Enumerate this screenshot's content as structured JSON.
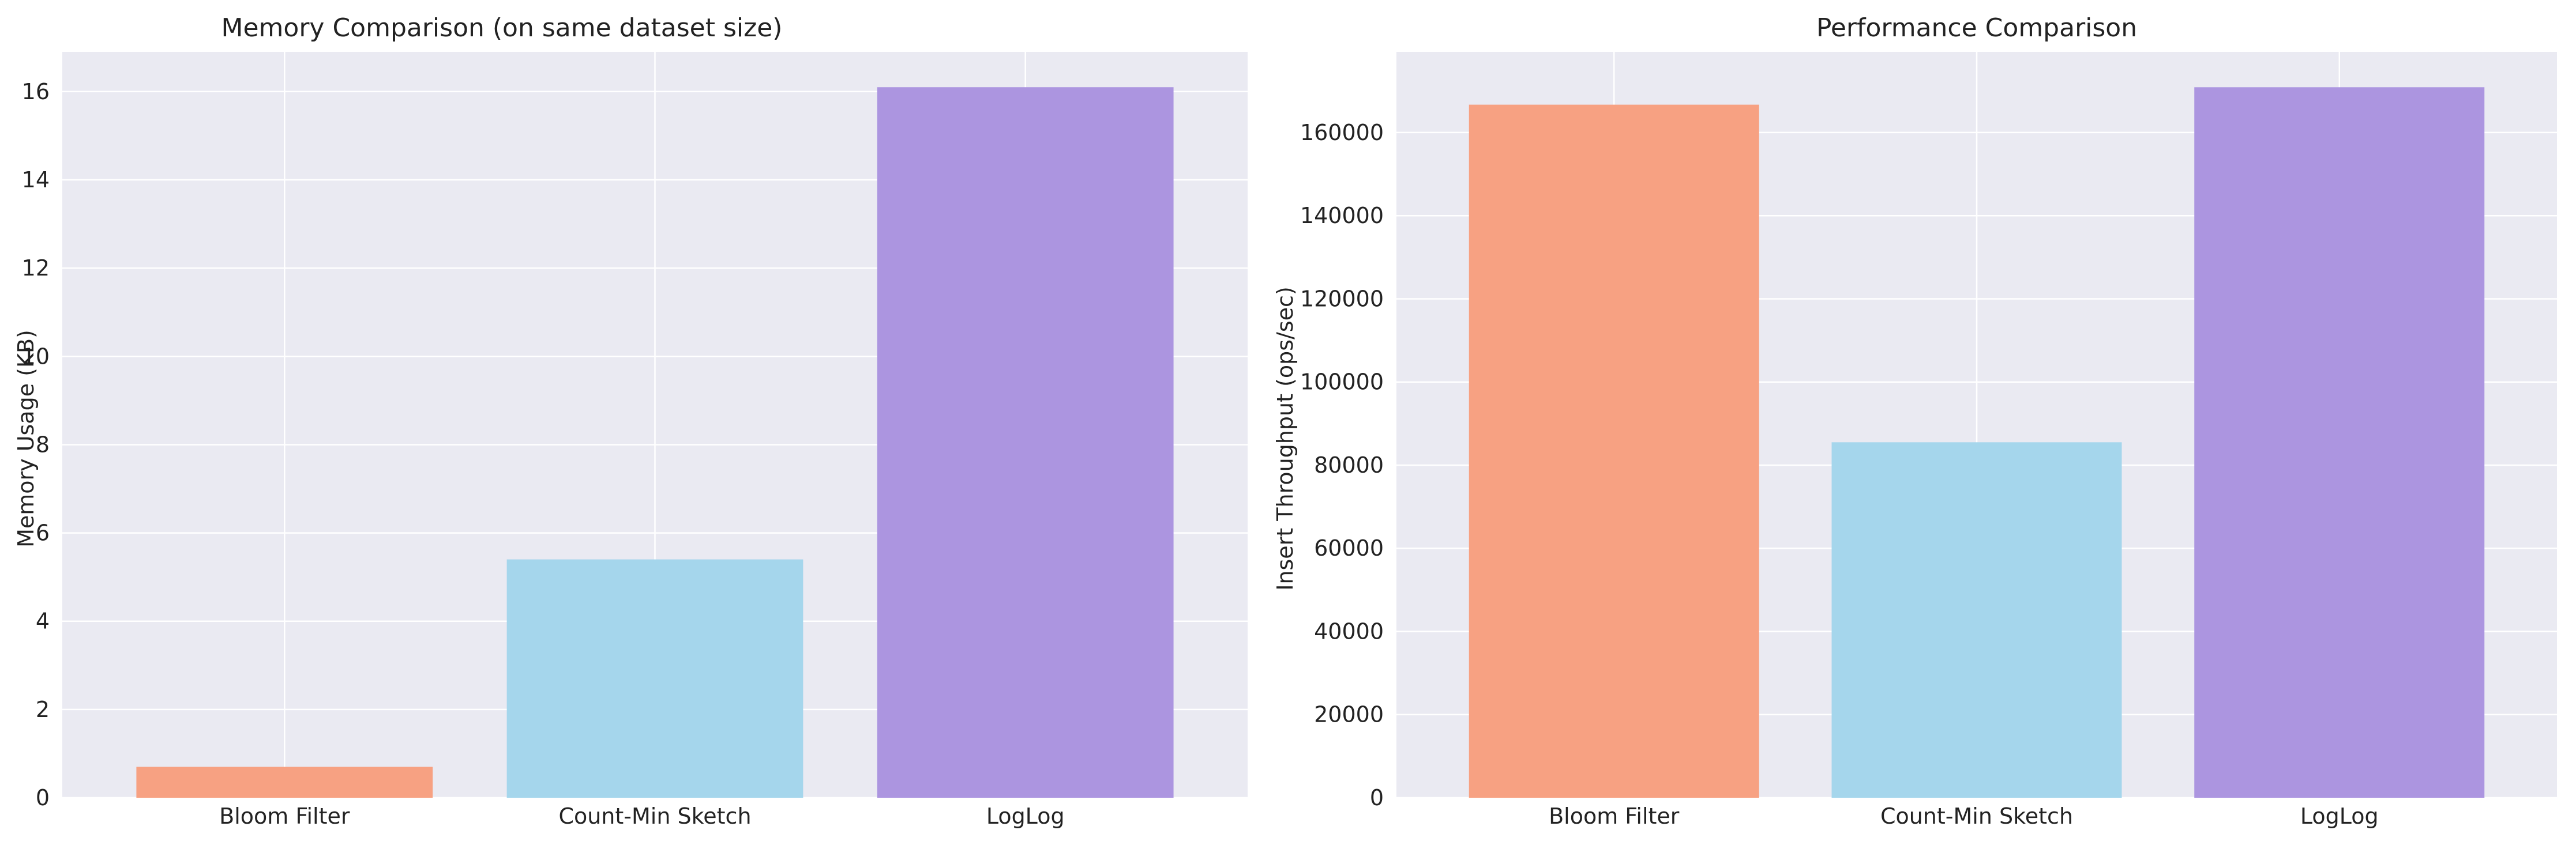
{
  "chart_data": [
    {
      "type": "bar",
      "title": "Memory Comparison (on same dataset size)",
      "xlabel": "",
      "ylabel": "Memory Usage (KB)",
      "categories": [
        "Bloom Filter",
        "Count-Min Sketch",
        "LogLog"
      ],
      "values": [
        0.7,
        5.4,
        16.1
      ],
      "colors": [
        "#f7a182",
        "#a5d6ec",
        "#ac95e0"
      ],
      "ylim": [
        0,
        16.9
      ],
      "yticks": [
        0,
        2,
        4,
        6,
        8,
        10,
        12,
        14,
        16
      ],
      "ytick_labels": [
        "0",
        "2",
        "4",
        "6",
        "8",
        "10",
        "12",
        "14",
        "16"
      ],
      "grid": true
    },
    {
      "type": "bar",
      "title": "Performance Comparison",
      "xlabel": "",
      "ylabel": "Insert Throughput (ops/sec)",
      "categories": [
        "Bloom Filter",
        "Count-Min Sketch",
        "LogLog"
      ],
      "values": [
        166700,
        85500,
        170900
      ],
      "colors": [
        "#f7a182",
        "#a5d6ec",
        "#ac95e0"
      ],
      "ylim": [
        0,
        179400
      ],
      "yticks": [
        0,
        20000,
        40000,
        60000,
        80000,
        100000,
        120000,
        140000,
        160000
      ],
      "ytick_labels": [
        "0",
        "20000",
        "40000",
        "60000",
        "80000",
        "100000",
        "120000",
        "140000",
        "160000"
      ],
      "grid": true
    }
  ]
}
